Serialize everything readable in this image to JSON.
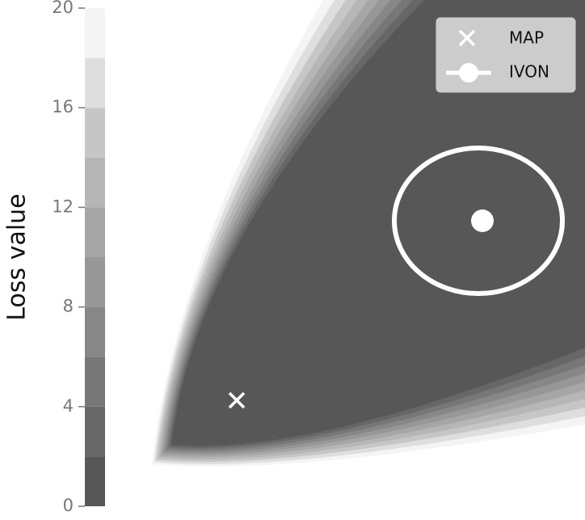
{
  "chart_data": {
    "type": "contour",
    "colorbar_label": "Loss value",
    "clim": [
      0,
      20
    ],
    "cticks": [
      0,
      4,
      8,
      12,
      16,
      20
    ],
    "levels": [
      0,
      2,
      4,
      6,
      8,
      10,
      12,
      14,
      16,
      18,
      20
    ],
    "colors": [
      "#575757",
      "#676767",
      "#777777",
      "#878787",
      "#979797",
      "#a6a6a6",
      "#b6b6b6",
      "#c6c6c6",
      "#dedede",
      "#f4f4f4"
    ],
    "series": [
      {
        "name": "MAP",
        "marker": "x",
        "color": "#ffffff"
      },
      {
        "name": "IVON",
        "marker": "o",
        "color": "#ffffff"
      }
    ]
  }
}
